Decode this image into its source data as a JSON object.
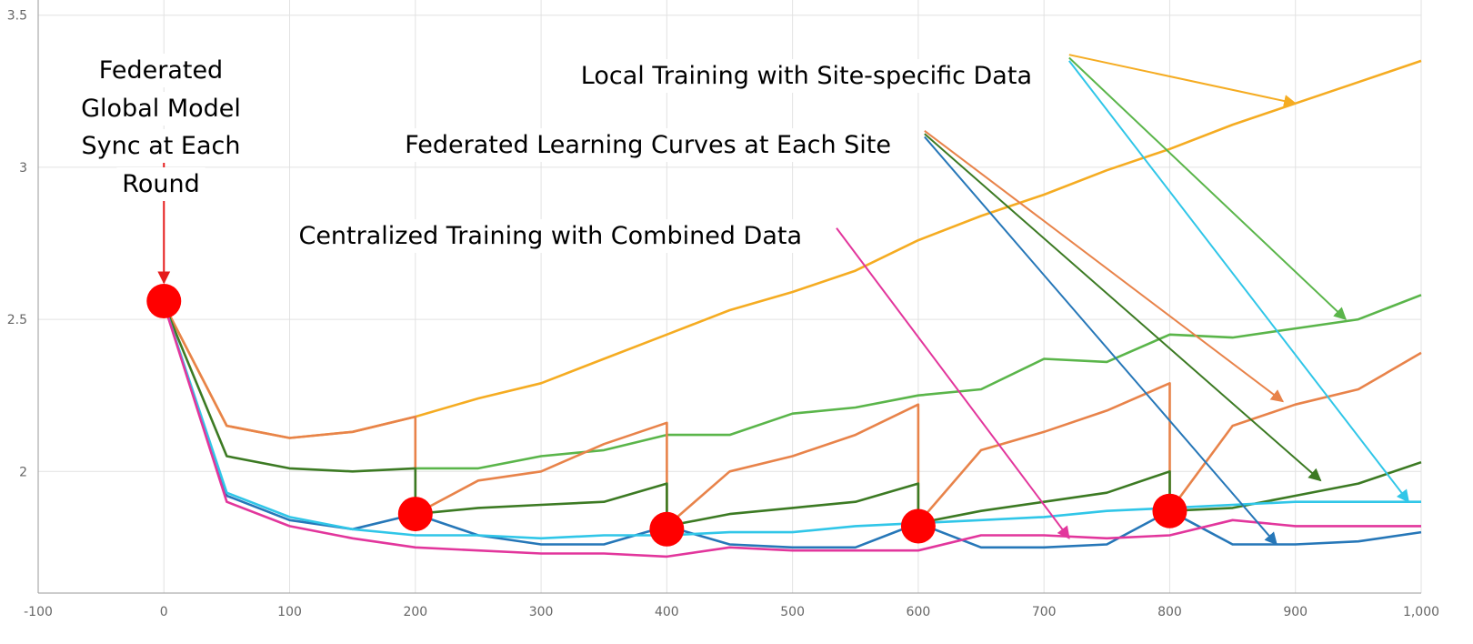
{
  "chart_data": {
    "type": "line",
    "xlim": [
      -100,
      1000
    ],
    "ylim": [
      1.6,
      3.55
    ],
    "x_ticks": [
      -100,
      0,
      100,
      200,
      300,
      400,
      500,
      600,
      700,
      800,
      900,
      1000
    ],
    "x_tick_labels": [
      "-100",
      "0",
      "100",
      "200",
      "300",
      "400",
      "500",
      "600",
      "700",
      "800",
      "900",
      "1,000"
    ],
    "y_ticks": [
      2,
      2.5,
      3,
      3.5
    ],
    "y_tick_labels": [
      "2",
      "2.5",
      "3",
      "3.5"
    ],
    "grid": true,
    "series": [
      {
        "color": "#f5ac22",
        "x": [
          0,
          50,
          100,
          150,
          200,
          250,
          300,
          350,
          400,
          450,
          500,
          550,
          600,
          650,
          700,
          750,
          800,
          850,
          900,
          950,
          1000
        ],
        "y": [
          2.55,
          2.15,
          2.11,
          2.13,
          2.18,
          2.24,
          2.29,
          2.37,
          2.45,
          2.53,
          2.59,
          2.66,
          2.76,
          2.84,
          2.91,
          2.99,
          3.06,
          3.14,
          3.21,
          3.28,
          3.35
        ]
      },
      {
        "color": "#5ab54a",
        "x": [
          200,
          250,
          300,
          350,
          400,
          450,
          500,
          550,
          600,
          650,
          700,
          750,
          800,
          850,
          900,
          950,
          1000
        ],
        "y": [
          2.01,
          2.01,
          2.05,
          2.07,
          2.12,
          2.12,
          2.19,
          2.21,
          2.25,
          2.27,
          2.37,
          2.36,
          2.45,
          2.44,
          2.47,
          2.5,
          2.58
        ]
      },
      {
        "color": "#e8834a",
        "x": [
          0,
          50,
          100,
          150,
          200,
          200,
          250,
          300,
          350,
          400,
          400,
          450,
          500,
          550,
          600,
          600,
          650,
          700,
          750,
          800,
          800,
          850,
          900,
          950,
          1000
        ],
        "y": [
          2.55,
          2.15,
          2.11,
          2.13,
          2.18,
          1.86,
          1.97,
          2.0,
          2.09,
          2.16,
          1.82,
          2.0,
          2.05,
          2.12,
          2.22,
          1.83,
          2.07,
          2.13,
          2.2,
          2.29,
          1.87,
          2.15,
          2.22,
          2.27,
          2.39
        ]
      },
      {
        "color": "#3c7a23",
        "x": [
          0,
          50,
          100,
          150,
          200,
          200,
          250,
          300,
          350,
          400,
          400,
          450,
          500,
          550,
          600,
          600,
          650,
          700,
          750,
          800,
          800,
          850,
          900,
          950,
          1000
        ],
        "y": [
          2.55,
          2.05,
          2.01,
          2.0,
          2.01,
          1.86,
          1.88,
          1.89,
          1.9,
          1.96,
          1.82,
          1.86,
          1.88,
          1.9,
          1.96,
          1.83,
          1.87,
          1.9,
          1.93,
          2.0,
          1.87,
          1.88,
          1.92,
          1.96,
          2.03
        ]
      },
      {
        "color": "#2677b8",
        "x": [
          0,
          50,
          100,
          150,
          200,
          250,
          300,
          350,
          400,
          450,
          500,
          550,
          600,
          650,
          700,
          750,
          800,
          850,
          900,
          950,
          1000
        ],
        "y": [
          2.55,
          1.92,
          1.84,
          1.81,
          1.86,
          1.79,
          1.76,
          1.76,
          1.82,
          1.76,
          1.75,
          1.75,
          1.83,
          1.75,
          1.75,
          1.76,
          1.87,
          1.76,
          1.76,
          1.77,
          1.8
        ]
      },
      {
        "color": "#30c6e8",
        "x": [
          0,
          50,
          100,
          150,
          200,
          250,
          300,
          350,
          400,
          450,
          500,
          550,
          600,
          650,
          700,
          750,
          800,
          850,
          900,
          950,
          1000
        ],
        "y": [
          2.55,
          1.93,
          1.85,
          1.81,
          1.79,
          1.79,
          1.78,
          1.79,
          1.79,
          1.8,
          1.8,
          1.82,
          1.83,
          1.84,
          1.85,
          1.87,
          1.88,
          1.89,
          1.9,
          1.9,
          1.9
        ]
      },
      {
        "color": "#e2369c",
        "x": [
          0,
          50,
          100,
          150,
          200,
          250,
          300,
          350,
          400,
          450,
          500,
          550,
          600,
          650,
          700,
          750,
          800,
          850,
          900,
          950,
          1000
        ],
        "y": [
          2.55,
          1.9,
          1.82,
          1.78,
          1.75,
          1.74,
          1.73,
          1.73,
          1.72,
          1.75,
          1.74,
          1.74,
          1.74,
          1.79,
          1.79,
          1.78,
          1.79,
          1.84,
          1.82,
          1.82,
          1.82
        ]
      }
    ],
    "sync_points": [
      {
        "x": 0,
        "y": 2.56
      },
      {
        "x": 200,
        "y": 1.86
      },
      {
        "x": 400,
        "y": 1.81
      },
      {
        "x": 600,
        "y": 1.82
      },
      {
        "x": 800,
        "y": 1.87
      }
    ],
    "annotations": {
      "sync": [
        "Federated",
        "Global Model",
        "Sync at Each",
        "Round"
      ],
      "local": "Local Training with Site-specific Data",
      "federated": "Federated Learning Curves at Each Site",
      "centralized": "Centralized Training with Combined Data"
    },
    "arrows": [
      {
        "color": "#e51b1b",
        "from": [
          0,
          3.1
        ],
        "to": [
          0,
          2.62
        ]
      },
      {
        "color": "#f5ac22",
        "from": [
          720,
          3.37
        ],
        "to": [
          900,
          3.21
        ]
      },
      {
        "color": "#5ab54a",
        "from": [
          720,
          3.36
        ],
        "to": [
          940,
          2.5
        ]
      },
      {
        "color": "#30c6e8",
        "from": [
          720,
          3.35
        ],
        "to": [
          990,
          1.9
        ]
      },
      {
        "color": "#e8834a",
        "from": [
          605,
          3.12
        ],
        "to": [
          890,
          2.23
        ]
      },
      {
        "color": "#3c7a23",
        "from": [
          605,
          3.11
        ],
        "to": [
          920,
          1.97
        ]
      },
      {
        "color": "#2677b8",
        "from": [
          605,
          3.1
        ],
        "to": [
          885,
          1.76
        ]
      },
      {
        "color": "#e2369c",
        "from": [
          535,
          2.8
        ],
        "to": [
          720,
          1.78
        ]
      }
    ]
  }
}
